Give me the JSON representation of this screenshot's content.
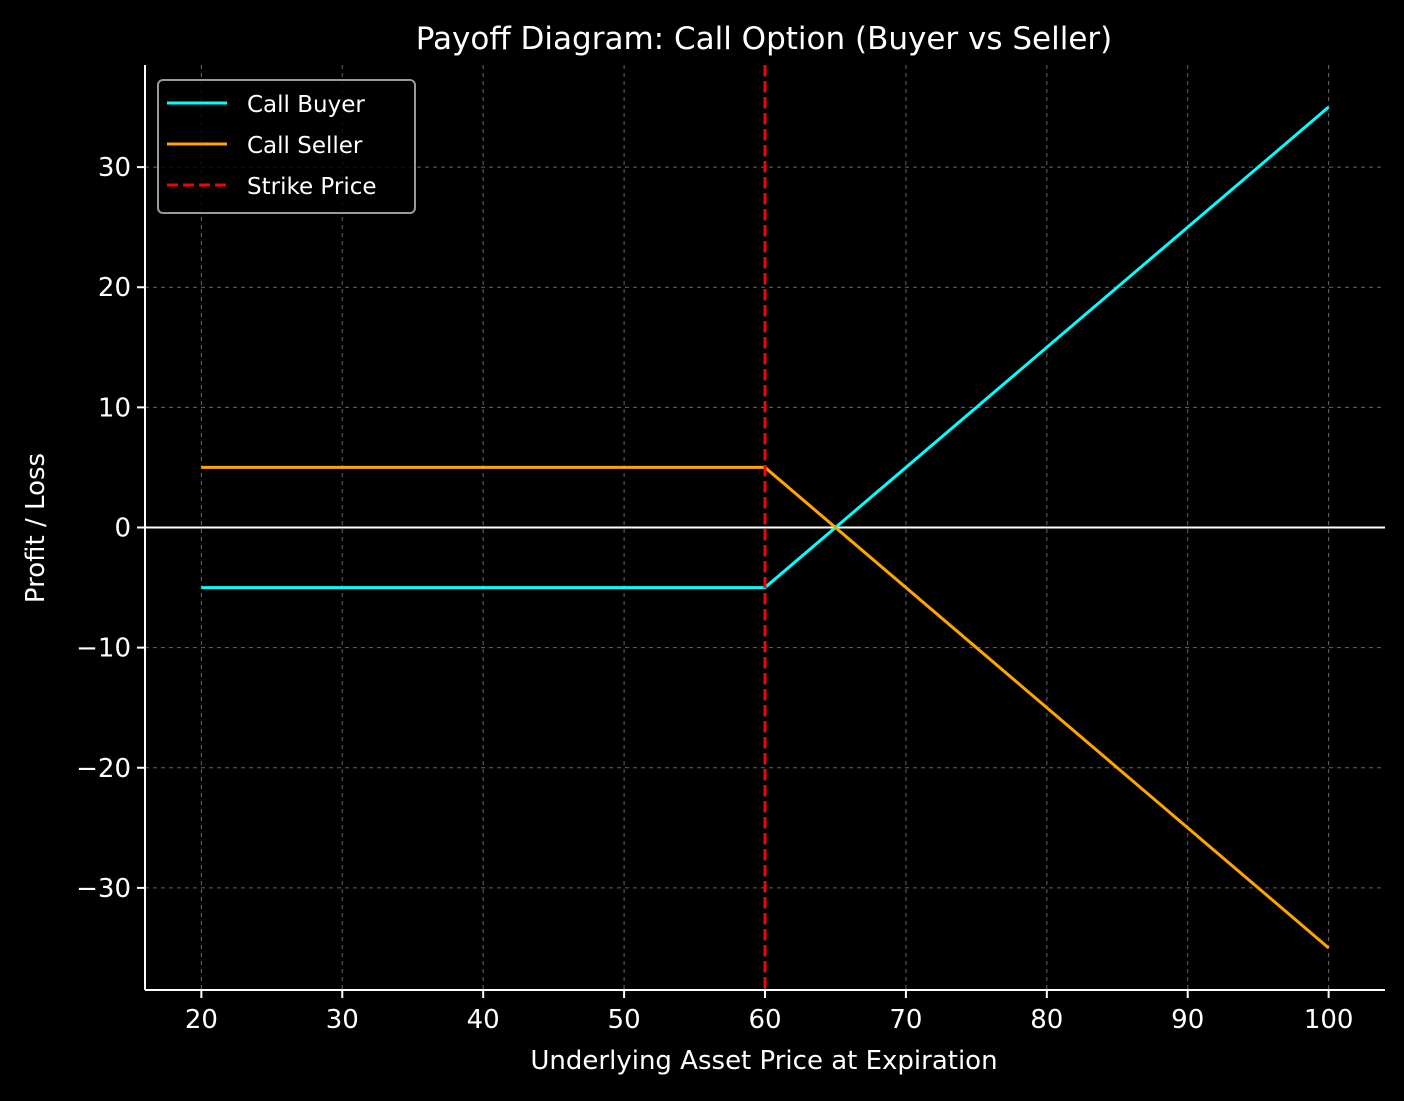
{
  "chart_data": {
    "type": "line",
    "title": "Payoff Diagram: Call Option (Buyer vs Seller)",
    "xlabel": "Underlying Asset Price at Expiration",
    "ylabel": "Profit / Loss",
    "xlim": [
      16,
      104
    ],
    "ylim": [
      -38.5,
      38.5
    ],
    "xticks": [
      20,
      30,
      40,
      50,
      60,
      70,
      80,
      90,
      100
    ],
    "yticks": [
      -30,
      -20,
      -10,
      0,
      10,
      20,
      30
    ],
    "xtick_labels": [
      "20",
      "30",
      "40",
      "50",
      "60",
      "70",
      "80",
      "90",
      "100"
    ],
    "ytick_labels": [
      "−30",
      "−20",
      "−10",
      "0",
      "10",
      "20",
      "30"
    ],
    "grid": true,
    "legend_position": "top-left",
    "background": "#000000",
    "zero_line": {
      "y": 0,
      "color": "#ffffff"
    },
    "series": [
      {
        "name": "Call Buyer",
        "color": "#00ffff",
        "style": "solid",
        "x": [
          20,
          60,
          100
        ],
        "y": [
          -5,
          -5,
          35
        ]
      },
      {
        "name": "Call Seller",
        "color": "#ffa500",
        "style": "solid",
        "x": [
          20,
          60,
          100
        ],
        "y": [
          5,
          5,
          -35
        ]
      },
      {
        "name": "Strike Price",
        "color": "#ff0000",
        "style": "dashed",
        "vline": 60
      }
    ]
  }
}
